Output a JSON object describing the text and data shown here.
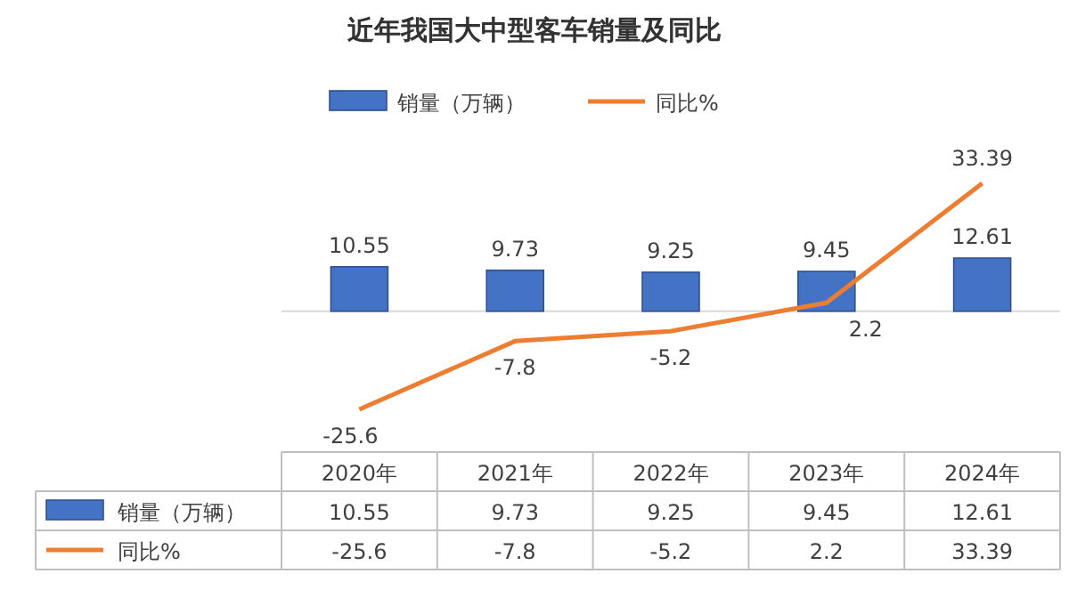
{
  "chart_data": {
    "type": "bar",
    "title": "近年我国大中型客车销量及同比",
    "categories": [
      "2020年",
      "2021年",
      "2022年",
      "2023年",
      "2024年"
    ],
    "series": [
      {
        "name": "销量（万辆）",
        "color": "#4472c4",
        "values": [
          10.55,
          9.73,
          9.25,
          9.45,
          12.61
        ],
        "value_labels": [
          "10.55",
          "9.73",
          "9.25",
          "9.45",
          "12.61"
        ]
      },
      {
        "name": "同比%",
        "type": "line",
        "axis": "y2",
        "color": "#ed7d31",
        "values": [
          -25.6,
          -7.8,
          -5.2,
          2.2,
          33.39
        ],
        "value_labels": [
          "-25.6",
          "-7.8",
          "-5.2",
          "2.2",
          "33.39"
        ]
      }
    ],
    "annotations": [
      "10.55",
      "9.73",
      "9.25",
      "9.45",
      "12.61",
      "-25.6",
      "-7.8",
      "-5.2",
      "2.2",
      "33.39"
    ],
    "legend": "top",
    "line_style": "solid"
  }
}
